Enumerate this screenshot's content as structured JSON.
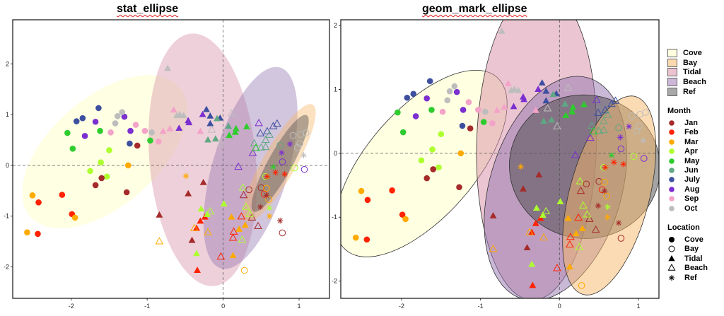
{
  "chart_data": [
    {
      "type": "scatter",
      "title": "stat_ellipse",
      "xlim": [
        -2.77,
        1.4
      ],
      "ylim": [
        -2.62,
        2.87
      ],
      "xticks": [
        "-2",
        "-1",
        "0",
        "1"
      ],
      "yticks": [
        "-2",
        "-1",
        "0",
        "1",
        "2"
      ],
      "reference_lines": {
        "x": 0,
        "y": 0,
        "style": "dashed"
      },
      "ellipse_style": "filled, no outline, translucent",
      "ellipses": [
        {
          "group": "Cove",
          "center": [
            -1.56,
            0.27
          ],
          "axis_a": [
            0.98,
            1.28
          ],
          "axis_b": [
            0.47,
            -0.8
          ]
        },
        {
          "group": "Tidal",
          "center": [
            -0.27,
            0.11
          ],
          "axis_a": [
            0.14,
            -2.49
          ],
          "axis_b": [
            0.7,
            0.05
          ]
        },
        {
          "group": "Beach",
          "center": [
            0.36,
            -0.05
          ],
          "axis_a": [
            0.39,
            1.98
          ],
          "axis_b": [
            0.48,
            -0.21
          ]
        },
        {
          "group": "Bay",
          "center": [
            0.74,
            0.05
          ],
          "axis_a": [
            0.44,
            1.15
          ],
          "axis_b": [
            0.19,
            -0.16
          ]
        },
        {
          "group": "Ref",
          "center": [
            0.75,
            0.04
          ],
          "axis_a": [
            0.35,
            0.95
          ],
          "axis_b": [
            0.14,
            -0.11
          ]
        }
      ]
    },
    {
      "type": "scatter",
      "title": "geom_mark_ellipse",
      "xlim": [
        -2.77,
        1.26
      ],
      "ylim": [
        -2.27,
        2.09
      ],
      "xticks": [
        "-2",
        "-1",
        "0",
        "1"
      ],
      "yticks": [
        "-2",
        "-1",
        "0",
        "1",
        "2"
      ],
      "reference_lines": {
        "x": 0,
        "y": 0,
        "style": "dashed"
      },
      "ellipse_style": "filled, black outline, translucent",
      "ellipses": [
        {
          "group": "Cove",
          "center": [
            -1.75,
            -0.16
          ],
          "axis_a": [
            0.96,
            1.35
          ],
          "axis_b": [
            0.51,
            -0.56
          ]
        },
        {
          "group": "Tidal",
          "center": [
            -0.29,
            0.15
          ],
          "axis_a": [
            0.05,
            2.45
          ],
          "axis_b": [
            0.76,
            0.0
          ]
        },
        {
          "group": "Beach",
          "center": [
            -0.05,
            -0.55
          ],
          "axis_a": [
            0.42,
            1.73
          ],
          "axis_b": [
            0.8,
            -0.3
          ]
        },
        {
          "group": "Ref",
          "center": [
            0.32,
            -0.21
          ],
          "axis_a": [
            0.95,
            0.1
          ],
          "axis_b": [
            -0.1,
            1.12
          ]
        },
        {
          "group": "Bay",
          "center": [
            0.63,
            -0.66
          ],
          "axis_a": [
            0.33,
            1.55
          ],
          "axis_b": [
            0.49,
            -0.16
          ]
        }
      ]
    }
  ],
  "points": [
    {
      "loc": "Cove",
      "month": "July",
      "x": -1.64,
      "y": 1.13
    },
    {
      "loc": "Cove",
      "month": "July",
      "x": -1.93,
      "y": 0.87
    },
    {
      "loc": "Cove",
      "month": "July",
      "x": -1.85,
      "y": 0.93
    },
    {
      "loc": "Cove",
      "month": "July",
      "x": -1.23,
      "y": 0.43
    },
    {
      "loc": "Cove",
      "month": "Aug",
      "x": -1.68,
      "y": 0.86
    },
    {
      "loc": "Cove",
      "month": "Aug",
      "x": -1.3,
      "y": 0.96
    },
    {
      "loc": "Cove",
      "month": "Aug",
      "x": -1.82,
      "y": 0.58
    },
    {
      "loc": "Cove",
      "month": "Aug",
      "x": -1.22,
      "y": 0.68
    },
    {
      "loc": "Cove",
      "month": "May",
      "x": -2.05,
      "y": 0.64
    },
    {
      "loc": "Cove",
      "month": "May",
      "x": -1.62,
      "y": 0.68
    },
    {
      "loc": "Cove",
      "month": "May",
      "x": -1.98,
      "y": 0.33
    },
    {
      "loc": "Cove",
      "month": "May",
      "x": -0.96,
      "y": 0.49
    },
    {
      "loc": "Cove",
      "month": "Apr",
      "x": -1.5,
      "y": 0.3
    },
    {
      "loc": "Cove",
      "month": "Apr",
      "x": -1.61,
      "y": 0.06
    },
    {
      "loc": "Cove",
      "month": "Apr",
      "x": -1.75,
      "y": -0.11
    },
    {
      "loc": "Cove",
      "month": "Apr",
      "x": -1.53,
      "y": -0.22
    },
    {
      "loc": "Cove",
      "month": "Oct",
      "x": -1.39,
      "y": 0.97
    },
    {
      "loc": "Cove",
      "month": "Oct",
      "x": -1.33,
      "y": 1.05
    },
    {
      "loc": "Cove",
      "month": "Oct",
      "x": -1.42,
      "y": 0.83
    },
    {
      "loc": "Cove",
      "month": "Oct",
      "x": -0.94,
      "y": 0.65
    },
    {
      "loc": "Cove",
      "month": "Sep",
      "x": -1.15,
      "y": 0.8
    },
    {
      "loc": "Cove",
      "month": "Sep",
      "x": -1.48,
      "y": 0.65
    },
    {
      "loc": "Cove",
      "month": "Sep",
      "x": -1.03,
      "y": 0.68
    },
    {
      "loc": "Cove",
      "month": "Sep",
      "x": -0.85,
      "y": 0.47
    },
    {
      "loc": "Cove",
      "month": "Jan",
      "x": -1.13,
      "y": 0.39
    },
    {
      "loc": "Cove",
      "month": "Jan",
      "x": -1.6,
      "y": -0.25
    },
    {
      "loc": "Cove",
      "month": "Jan",
      "x": -1.68,
      "y": -0.39
    },
    {
      "loc": "Cove",
      "month": "Jan",
      "x": -1.27,
      "y": -0.53
    },
    {
      "loc": "Cove",
      "month": "Feb",
      "x": -2.12,
      "y": -0.58
    },
    {
      "loc": "Cove",
      "month": "Feb",
      "x": -2.43,
      "y": -0.73
    },
    {
      "loc": "Cove",
      "month": "Feb",
      "x": -1.99,
      "y": -0.96
    },
    {
      "loc": "Cove",
      "month": "Feb",
      "x": -2.44,
      "y": -1.35
    },
    {
      "loc": "Cove",
      "month": "Mar",
      "x": -1.25,
      "y": 0.0
    },
    {
      "loc": "Cove",
      "month": "Mar",
      "x": -2.51,
      "y": -0.59
    },
    {
      "loc": "Cove",
      "month": "Mar",
      "x": -1.95,
      "y": -1.03
    },
    {
      "loc": "Cove",
      "month": "Mar",
      "x": -2.58,
      "y": -1.32
    },
    {
      "loc": "Tidal",
      "month": "Oct",
      "x": -0.73,
      "y": 1.91
    },
    {
      "loc": "Tidal",
      "month": "Oct",
      "x": -0.61,
      "y": 0.98
    },
    {
      "loc": "Tidal",
      "month": "Oct",
      "x": -0.57,
      "y": 1.0
    },
    {
      "loc": "Tidal",
      "month": "Oct",
      "x": -0.52,
      "y": 0.98
    },
    {
      "loc": "Tidal",
      "month": "Sep",
      "x": -0.65,
      "y": 1.09
    },
    {
      "loc": "Tidal",
      "month": "Sep",
      "x": -0.7,
      "y": 0.72
    },
    {
      "loc": "Tidal",
      "month": "Sep",
      "x": -0.79,
      "y": 0.67
    },
    {
      "loc": "Tidal",
      "month": "Sep",
      "x": -0.3,
      "y": 0.67
    },
    {
      "loc": "Tidal",
      "month": "Aug",
      "x": -0.46,
      "y": 0.88
    },
    {
      "loc": "Tidal",
      "month": "Aug",
      "x": -0.45,
      "y": 0.84
    },
    {
      "loc": "Tidal",
      "month": "Aug",
      "x": -0.58,
      "y": 0.73
    },
    {
      "loc": "Tidal",
      "month": "Aug",
      "x": -0.27,
      "y": 1.0
    },
    {
      "loc": "Tidal",
      "month": "July",
      "x": -0.22,
      "y": 1.1
    },
    {
      "loc": "Tidal",
      "month": "July",
      "x": -0.17,
      "y": 0.97
    },
    {
      "loc": "Tidal",
      "month": "July",
      "x": -0.04,
      "y": 0.93
    },
    {
      "loc": "Tidal",
      "month": "July",
      "x": -0.17,
      "y": 0.82
    },
    {
      "loc": "Tidal",
      "month": "Jun",
      "x": -0.2,
      "y": 0.5
    },
    {
      "loc": "Tidal",
      "month": "Jun",
      "x": -0.1,
      "y": 0.52
    },
    {
      "loc": "Tidal",
      "month": "Jun",
      "x": 0.07,
      "y": 0.77
    },
    {
      "loc": "Tidal",
      "month": "Jun",
      "x": -0.08,
      "y": 0.92
    },
    {
      "loc": "Tidal",
      "month": "May",
      "x": 0.17,
      "y": 0.72
    },
    {
      "loc": "Tidal",
      "month": "May",
      "x": 0.31,
      "y": 0.76
    },
    {
      "loc": "Tidal",
      "month": "May",
      "x": 0.08,
      "y": 0.59
    },
    {
      "loc": "Tidal",
      "month": "May",
      "x": 0.16,
      "y": 0.65
    },
    {
      "loc": "Tidal",
      "month": "Jan",
      "x": -0.26,
      "y": -0.34
    },
    {
      "loc": "Tidal",
      "month": "Jan",
      "x": -0.46,
      "y": -0.56
    },
    {
      "loc": "Tidal",
      "month": "Jan",
      "x": -0.84,
      "y": -0.98
    },
    {
      "loc": "Tidal",
      "month": "Jan",
      "x": -0.41,
      "y": -1.48
    },
    {
      "loc": "Tidal",
      "month": "Feb",
      "x": -0.3,
      "y": -1.1
    },
    {
      "loc": "Tidal",
      "month": "Feb",
      "x": -0.35,
      "y": -1.24
    },
    {
      "loc": "Tidal",
      "month": "Feb",
      "x": -0.24,
      "y": -1.02
    },
    {
      "loc": "Tidal",
      "month": "Feb",
      "x": -0.34,
      "y": -2.07
    },
    {
      "loc": "Tidal",
      "month": "Apr",
      "x": -0.29,
      "y": -0.86
    },
    {
      "loc": "Tidal",
      "month": "Apr",
      "x": -0.21,
      "y": -0.97
    },
    {
      "loc": "Tidal",
      "month": "Apr",
      "x": 0.01,
      "y": -0.76
    },
    {
      "loc": "Tidal",
      "month": "Apr",
      "x": -0.35,
      "y": -1.74
    },
    {
      "loc": "Tidal",
      "month": "Mar",
      "x": 0.11,
      "y": -1.02
    },
    {
      "loc": "Tidal",
      "month": "Mar",
      "x": 0.21,
      "y": -1.26
    },
    {
      "loc": "Tidal",
      "month": "Mar",
      "x": 0.29,
      "y": -1.18
    },
    {
      "loc": "Tidal",
      "month": "Mar",
      "x": 0.13,
      "y": -1.78
    },
    {
      "loc": "Beach",
      "month": "Mar",
      "x": -0.84,
      "y": -1.5
    },
    {
      "loc": "Beach",
      "month": "Mar",
      "x": -0.38,
      "y": -1.24
    },
    {
      "loc": "Beach",
      "month": "Mar",
      "x": -0.2,
      "y": -1.32
    },
    {
      "loc": "Beach",
      "month": "Oct",
      "x": 0.11,
      "y": 1.02
    },
    {
      "loc": "Beach",
      "month": "Oct",
      "x": -0.15,
      "y": 0.7
    },
    {
      "loc": "Beach",
      "month": "Oct",
      "x": -0.03,
      "y": 0.42
    },
    {
      "loc": "Beach",
      "month": "Aug",
      "x": 0.47,
      "y": 0.83
    },
    {
      "loc": "Beach",
      "month": "Aug",
      "x": 0.39,
      "y": 0.24
    },
    {
      "loc": "Beach",
      "month": "Aug",
      "x": 0.2,
      "y": -0.03
    },
    {
      "loc": "Beach",
      "month": "July",
      "x": 0.71,
      "y": 0.82
    },
    {
      "loc": "Beach",
      "month": "July",
      "x": 0.49,
      "y": 0.63
    },
    {
      "loc": "Beach",
      "month": "July",
      "x": 0.58,
      "y": 0.67
    },
    {
      "loc": "Beach",
      "month": "July",
      "x": 0.66,
      "y": 0.77
    },
    {
      "loc": "Beach",
      "month": "Jun",
      "x": 0.41,
      "y": 0.43
    },
    {
      "loc": "Beach",
      "month": "Jun",
      "x": 0.5,
      "y": 0.35
    },
    {
      "loc": "Beach",
      "month": "Jun",
      "x": 0.56,
      "y": 0.36
    },
    {
      "loc": "Beach",
      "month": "Jun",
      "x": 0.61,
      "y": 0.6
    },
    {
      "loc": "Beach",
      "month": "Jun",
      "x": 0.56,
      "y": 0.5
    },
    {
      "loc": "Beach",
      "month": "May",
      "x": 0.43,
      "y": 0.34
    },
    {
      "loc": "Beach",
      "month": "Jan",
      "x": 0.27,
      "y": -0.59
    },
    {
      "loc": "Beach",
      "month": "Feb",
      "x": 0.24,
      "y": -1.01
    },
    {
      "loc": "Beach",
      "month": "Feb",
      "x": 0.14,
      "y": -1.31
    },
    {
      "loc": "Beach",
      "month": "Feb",
      "x": 0.13,
      "y": -1.43
    },
    {
      "loc": "Beach",
      "month": "Jan",
      "x": 0.38,
      "y": -1.03
    },
    {
      "loc": "Beach",
      "month": "Jan",
      "x": 0.46,
      "y": -1.2
    },
    {
      "loc": "Beach",
      "month": "Feb",
      "x": -0.03,
      "y": -1.8
    },
    {
      "loc": "Beach",
      "month": "Apr",
      "x": 0.26,
      "y": -0.44
    },
    {
      "loc": "Beach",
      "month": "Apr",
      "x": 0.3,
      "y": -0.82
    },
    {
      "loc": "Beach",
      "month": "Apr",
      "x": 0.25,
      "y": -1.47
    },
    {
      "loc": "Beach",
      "month": "Apr",
      "x": 0.35,
      "y": -0.96
    },
    {
      "loc": "Beach",
      "month": "Apr",
      "x": -0.17,
      "y": -0.91
    },
    {
      "loc": "Bay",
      "month": "Oct",
      "x": 1.09,
      "y": 0.64
    },
    {
      "loc": "Bay",
      "month": "Oct",
      "x": 1.02,
      "y": 0.61
    },
    {
      "loc": "Bay",
      "month": "Oct",
      "x": 0.92,
      "y": 0.59
    },
    {
      "loc": "Bay",
      "month": "Oct",
      "x": 1.01,
      "y": 0.43
    },
    {
      "loc": "Bay",
      "month": "Oct",
      "x": 0.98,
      "y": 0.35
    },
    {
      "loc": "Bay",
      "month": "Jun",
      "x": 0.75,
      "y": 0.4
    },
    {
      "loc": "Bay",
      "month": "Aug",
      "x": 0.78,
      "y": 0.07
    },
    {
      "loc": "Bay",
      "month": "Apr",
      "x": 0.94,
      "y": -0.05
    },
    {
      "loc": "Bay",
      "month": "Aug",
      "x": 1.07,
      "y": -0.08
    },
    {
      "loc": "Bay",
      "month": "Jan",
      "x": 0.34,
      "y": -0.48
    },
    {
      "loc": "Bay",
      "month": "Jan",
      "x": 0.5,
      "y": -0.44
    },
    {
      "loc": "Bay",
      "month": "Mar",
      "x": 0.57,
      "y": -0.45
    },
    {
      "loc": "Bay",
      "month": "Feb",
      "x": 0.54,
      "y": -0.57
    },
    {
      "loc": "Bay",
      "month": "Mar",
      "x": 0.6,
      "y": -0.67
    },
    {
      "loc": "Bay",
      "month": "Jan",
      "x": 0.78,
      "y": -1.33
    },
    {
      "loc": "Bay",
      "month": "Mar",
      "x": 0.28,
      "y": -2.07
    },
    {
      "loc": "Bay",
      "month": "Apr",
      "x": 0.56,
      "y": -0.22
    },
    {
      "loc": "Ref",
      "month": "Mar",
      "x": -0.49,
      "y": -0.21
    },
    {
      "loc": "Ref",
      "month": "Jan",
      "x": 0.75,
      "y": -1.09
    },
    {
      "loc": "Ref",
      "month": "Oct",
      "x": 1.06,
      "y": 0.2
    },
    {
      "loc": "Ref",
      "month": "Mar",
      "x": 0.61,
      "y": -1.0
    },
    {
      "loc": "Ref",
      "month": "Feb",
      "x": 0.69,
      "y": -0.14
    },
    {
      "loc": "Ref",
      "month": "Feb",
      "x": 0.81,
      "y": -0.17
    },
    {
      "loc": "Ref",
      "month": "Jan",
      "x": 0.49,
      "y": -0.82
    },
    {
      "loc": "Ref",
      "month": "Jan",
      "x": 0.57,
      "y": -0.59
    },
    {
      "loc": "Ref",
      "month": "May",
      "x": 0.66,
      "y": -0.03
    },
    {
      "loc": "Ref",
      "month": "Aug",
      "x": 0.88,
      "y": 0.42
    },
    {
      "loc": "Ref",
      "month": "Aug",
      "x": 0.77,
      "y": 0.25
    },
    {
      "loc": "Ref",
      "month": "Feb",
      "x": 0.58,
      "y": -0.22
    },
    {
      "loc": "Ref",
      "month": "Apr",
      "x": 0.61,
      "y": -0.84
    }
  ],
  "legend": {
    "groups": [
      {
        "label": "Cove",
        "fill": "#ffffe0"
      },
      {
        "label": "Bay",
        "fill": "#fbd9ae"
      },
      {
        "label": "Tidal",
        "fill": "#ebc2cf"
      },
      {
        "label": "Beach",
        "fill": "#cdb7d8"
      },
      {
        "label": "Ref",
        "fill": "#a8a8a8"
      }
    ],
    "month_title": "Month",
    "months": [
      {
        "label": "Jan",
        "color": "#a52a2a"
      },
      {
        "label": "Feb",
        "color": "#ff2200"
      },
      {
        "label": "Mar",
        "color": "#ffaa00"
      },
      {
        "label": "Apr",
        "color": "#adff2f"
      },
      {
        "label": "May",
        "color": "#2ecc2e"
      },
      {
        "label": "Jun",
        "color": "#5fa883"
      },
      {
        "label": "July",
        "color": "#3d4f9f"
      },
      {
        "label": "Aug",
        "color": "#7b2fd0"
      },
      {
        "label": "Sep",
        "color": "#f4a3c8"
      },
      {
        "label": "Oct",
        "color": "#bdbdbd"
      }
    ],
    "location_title": "Location",
    "locations": [
      {
        "label": "Cove",
        "shape": "filled-circle"
      },
      {
        "label": "Bay",
        "shape": "open-circle"
      },
      {
        "label": "Tidal",
        "shape": "filled-triangle"
      },
      {
        "label": "Beach",
        "shape": "open-triangle"
      },
      {
        "label": "Ref",
        "shape": "asterisk"
      }
    ]
  },
  "ellipse_fills": {
    "Cove": "#ffffc8",
    "Bay": "#f5b868",
    "Tidal": "#d78ea6",
    "Beach": "#9374b0",
    "Ref": "#4a4a4a"
  }
}
